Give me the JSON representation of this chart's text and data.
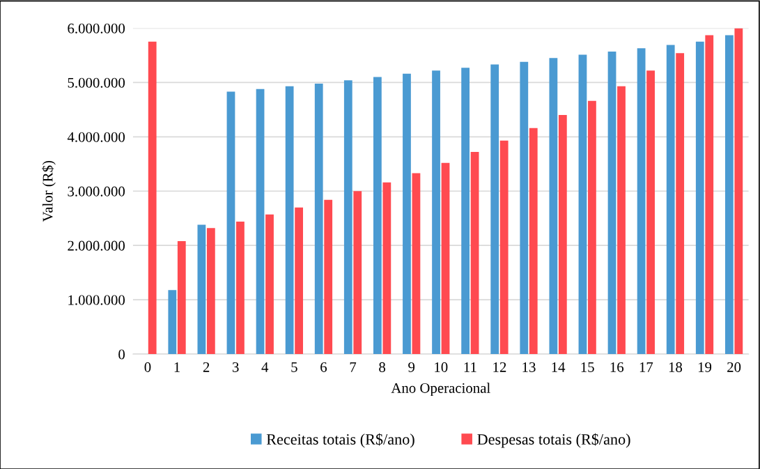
{
  "chart_data": {
    "type": "bar",
    "xlabel": "Ano Operacional",
    "ylabel": "Valor (R$)",
    "categories": [
      "0",
      "1",
      "2",
      "3",
      "4",
      "5",
      "6",
      "7",
      "8",
      "9",
      "10",
      "11",
      "12",
      "13",
      "14",
      "15",
      "16",
      "17",
      "18",
      "19",
      "20"
    ],
    "series": [
      {
        "name": "Receitas totais (R$/ano)",
        "color": "#4a9ad2",
        "values": [
          null,
          1180000,
          2380000,
          4830000,
          4880000,
          4930000,
          4980000,
          5040000,
          5100000,
          5160000,
          5220000,
          5270000,
          5330000,
          5380000,
          5450000,
          5510000,
          5570000,
          5630000,
          5690000,
          5750000,
          5870000
        ]
      },
      {
        "name": "Despesas totais (R$/ano)",
        "color": "#ff4a50",
        "values": [
          5750000,
          2080000,
          2320000,
          2440000,
          2570000,
          2700000,
          2840000,
          3000000,
          3160000,
          3330000,
          3520000,
          3720000,
          3930000,
          4160000,
          4400000,
          4660000,
          4930000,
          5220000,
          5540000,
          5870000,
          6000000
        ]
      }
    ],
    "ylim": [
      0,
      6000000
    ],
    "yticks": [
      0,
      {
        "value": 1000000,
        "label": "1.000.000"
      },
      {
        "value": 2000000,
        "label": "2.000.000"
      },
      {
        "value": 3000000,
        "label": "3.000.000"
      },
      {
        "value": 4000000,
        "label": "4.000.000"
      },
      {
        "value": 5000000,
        "label": "5.000.000"
      },
      {
        "value": 6000000,
        "label": "6.000.000"
      }
    ],
    "grid": "y",
    "legend": "bottom"
  }
}
